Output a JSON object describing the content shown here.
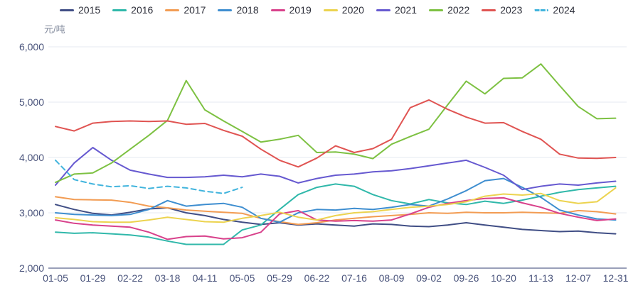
{
  "unit_label": "元/吨",
  "chart_data": {
    "type": "line",
    "title": "",
    "xlabel": "",
    "ylabel": "元/吨",
    "ylim": [
      2000,
      6000
    ],
    "grid": true,
    "legend_position": "top",
    "y_ticks": [
      2000,
      3000,
      4000,
      5000,
      6000
    ],
    "y_tick_labels": [
      "2,000",
      "3,000",
      "4,000",
      "5,000",
      "6,000"
    ],
    "x_tick_labels": [
      "01-05",
      "01-29",
      "02-22",
      "03-18",
      "04-11",
      "05-05",
      "05-29",
      "06-22",
      "07-16",
      "08-09",
      "09-02",
      "09-26",
      "10-20",
      "11-13",
      "12-07",
      "12-31"
    ],
    "sample_interval_days": 12,
    "sample_dates": [
      "01-05",
      "01-17",
      "01-29",
      "02-10",
      "02-22",
      "03-06",
      "03-18",
      "03-30",
      "04-11",
      "04-23",
      "05-05",
      "05-17",
      "05-29",
      "06-10",
      "06-22",
      "07-04",
      "07-16",
      "07-28",
      "08-09",
      "08-21",
      "09-02",
      "09-14",
      "09-26",
      "10-08",
      "10-20",
      "11-01",
      "11-13",
      "11-25",
      "12-07",
      "12-19",
      "12-31"
    ],
    "series": [
      {
        "name": "2015",
        "color": "#404e85",
        "style": "solid",
        "values": [
          3150,
          3060,
          2990,
          2960,
          3010,
          3070,
          3090,
          3000,
          2950,
          2880,
          2830,
          2790,
          2820,
          2780,
          2800,
          2780,
          2760,
          2800,
          2790,
          2760,
          2750,
          2780,
          2820,
          2780,
          2740,
          2700,
          2680,
          2660,
          2670,
          2640,
          2620
        ]
      },
      {
        "name": "2016",
        "color": "#30b8aa",
        "style": "solid",
        "values": [
          2650,
          2630,
          2640,
          2620,
          2600,
          2560,
          2490,
          2430,
          2430,
          2430,
          2690,
          2780,
          3060,
          3330,
          3460,
          3520,
          3480,
          3330,
          3220,
          3160,
          3240,
          3180,
          3150,
          3210,
          3170,
          3230,
          3300,
          3370,
          3420,
          3450,
          3480
        ]
      },
      {
        "name": "2017",
        "color": "#f29c53",
        "style": "solid",
        "values": [
          3290,
          3240,
          3235,
          3230,
          3190,
          3120,
          3090,
          3050,
          3030,
          3010,
          2990,
          2900,
          2840,
          2790,
          2820,
          2870,
          2900,
          2930,
          2950,
          2970,
          3000,
          2990,
          3010,
          3000,
          3000,
          3010,
          3000,
          2990,
          3040,
          3020,
          2980
        ]
      },
      {
        "name": "2018",
        "color": "#3e8ed0",
        "style": "solid",
        "values": [
          3000,
          2970,
          2960,
          2950,
          2970,
          3060,
          3220,
          3120,
          3150,
          3170,
          3100,
          2900,
          2830,
          3000,
          3060,
          3050,
          3080,
          3060,
          3100,
          3150,
          3120,
          3250,
          3400,
          3580,
          3620,
          3460,
          3280,
          3050,
          2960,
          2890,
          2870
        ]
      },
      {
        "name": "2019",
        "color": "#d8418b",
        "style": "solid",
        "values": [
          2870,
          2810,
          2780,
          2760,
          2740,
          2650,
          2520,
          2570,
          2580,
          2530,
          2550,
          2650,
          2980,
          3040,
          2870,
          2850,
          2860,
          2850,
          2870,
          2980,
          3100,
          3170,
          3220,
          3260,
          3270,
          3180,
          3100,
          2990,
          2920,
          2860,
          2890
        ]
      },
      {
        "name": "2020",
        "color": "#ecd34f",
        "style": "solid",
        "values": [
          2910,
          2880,
          2840,
          2830,
          2830,
          2870,
          2920,
          2880,
          2840,
          2830,
          2900,
          2950,
          3010,
          2920,
          2870,
          2950,
          3000,
          3020,
          3060,
          3100,
          3120,
          3150,
          3200,
          3300,
          3340,
          3320,
          3350,
          3220,
          3170,
          3200,
          3450
        ]
      },
      {
        "name": "2021",
        "color": "#6659d0",
        "style": "solid",
        "values": [
          3500,
          3900,
          4180,
          3950,
          3770,
          3700,
          3640,
          3640,
          3650,
          3680,
          3650,
          3700,
          3660,
          3540,
          3620,
          3680,
          3700,
          3740,
          3760,
          3800,
          3850,
          3900,
          3950,
          3820,
          3680,
          3420,
          3480,
          3520,
          3500,
          3540,
          3570
        ]
      },
      {
        "name": "2022",
        "color": "#7dc142",
        "style": "solid",
        "values": [
          3550,
          3700,
          3720,
          3900,
          4150,
          4400,
          4670,
          5390,
          4860,
          4660,
          4470,
          4280,
          4330,
          4400,
          4090,
          4100,
          4060,
          3980,
          4240,
          4380,
          4510,
          4950,
          5380,
          5150,
          5430,
          5440,
          5690,
          5300,
          4920,
          4700,
          4710
        ]
      },
      {
        "name": "2023",
        "color": "#e05452",
        "style": "solid",
        "values": [
          4560,
          4480,
          4620,
          4650,
          4660,
          4650,
          4660,
          4600,
          4615,
          4490,
          4385,
          4150,
          3950,
          3830,
          3990,
          4210,
          4090,
          4160,
          4330,
          4900,
          5040,
          4870,
          4730,
          4620,
          4630,
          4470,
          4330,
          4060,
          3990,
          3985,
          4000
        ]
      },
      {
        "name": "2024",
        "color": "#41b4dd",
        "style": "dashed",
        "values": [
          3950,
          3600,
          3520,
          3470,
          3490,
          3440,
          3480,
          3450,
          3390,
          3350,
          3460
        ]
      }
    ]
  },
  "theme": {
    "grid_line_color": "#e6e9f0",
    "axis_line_color": "#333f73",
    "tick_label_color": "#49537b",
    "legend_text_color": "#2d2f3a",
    "unit_label_color": "#828a9c",
    "background": "#ffffff"
  }
}
